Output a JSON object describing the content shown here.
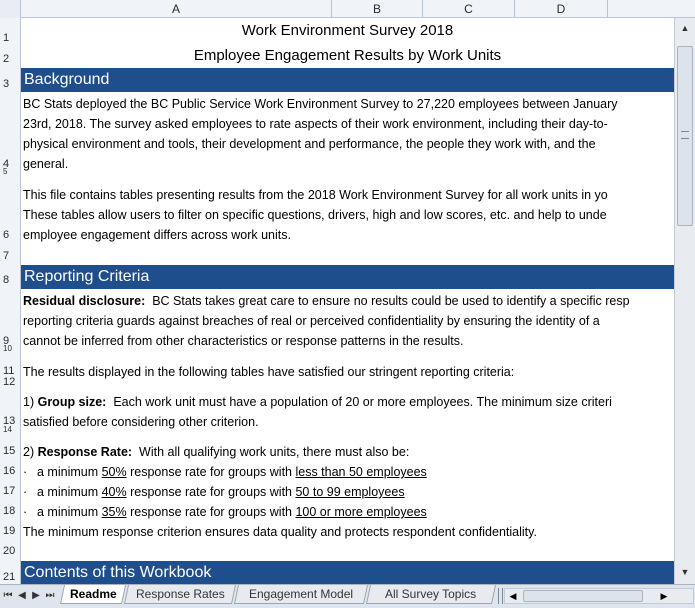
{
  "columns": [
    "A",
    "B",
    "C",
    "D"
  ],
  "rows": [
    "1",
    "2",
    "3",
    "4",
    "5",
    "6",
    "7",
    "8",
    "9",
    "10",
    "11",
    "12",
    "13",
    "14",
    "15",
    "16",
    "17",
    "18",
    "19",
    "20",
    "21"
  ],
  "title1": "Work Environment Survey 2018",
  "title2": "Employee Engagement Results by Work Units",
  "background": {
    "heading": "Background",
    "p1": [
      "BC Stats deployed the BC Public Service Work Environment Survey to 27,220 employees between January",
      "23rd, 2018. The survey asked employees to rate aspects of their work environment, including their day-to-",
      "physical environment and tools, their development and performance, the people they work with, and the",
      "general."
    ],
    "p2": [
      "This file contains tables presenting results from the 2018 Work Environment Survey for all work units in yo",
      "These tables allow users to filter on specific questions, drivers, high and low scores, etc. and help to unde",
      "employee engagement differs across work units."
    ]
  },
  "criteria": {
    "heading": "Reporting Criteria",
    "residual_label": "Residual disclosure:",
    "residual_lines": [
      "BC Stats takes great care to ensure no results could be used to identify a specific resp",
      "reporting criteria guards against breaches of real or perceived confidentiality by ensuring the identity of a",
      "cannot be inferred from other characteristics or response patterns in the results."
    ],
    "stringent": "The results displayed in the following tables have satisfied our stringent reporting criteria:",
    "group_prefix": "1) ",
    "group_label": "Group size:",
    "group_text": "Each work unit must have a population of 20 or more employees.  The minimum size criteri",
    "group_text2": "satisfied before considering other criterion.",
    "response_prefix": "2) ",
    "response_label": "Response Rate:",
    "response_text": "With all qualifying work units, there must also be:",
    "bullets": [
      {
        "lead": "a minimum ",
        "pct": "50%",
        "mid": " response rate for groups with ",
        "group": "less than 50 employees"
      },
      {
        "lead": "a minimum ",
        "pct": "40%",
        "mid": " response rate for groups with ",
        "group": "50 to 99 employees"
      },
      {
        "lead": "a minimum ",
        "pct": "35%",
        "mid": " response rate for groups with ",
        "group": "100 or more employees"
      }
    ],
    "bullet_glyph": "·",
    "closing": "The minimum response criterion ensures data quality and protects respondent confidentiality."
  },
  "contents": {
    "heading": "Contents of this Workbook"
  },
  "tabs": [
    "Readme",
    "Response Rates",
    "Engagement Model",
    "All Survey Topics"
  ],
  "colors": {
    "band": "#1f4e8c",
    "header_bg": "#f0f3f7"
  }
}
